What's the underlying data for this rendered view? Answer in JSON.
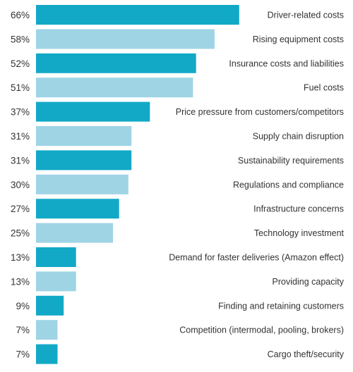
{
  "chart_data": {
    "type": "bar",
    "orientation": "horizontal",
    "categories": [
      "Driver-related costs",
      "Rising equipment costs",
      "Insurance costs and liabilities",
      "Fuel costs",
      "Price pressure from customers/competitors",
      "Supply chain disruption",
      "Sustainability requirements",
      "Regulations and compliance",
      "Infrastructure concerns",
      "Technology investment",
      "Demand for faster deliveries (Amazon effect)",
      "Providing capacity",
      "Finding and retaining customers",
      "Competition (intermodal, pooling, brokers)",
      "Cargo theft/security"
    ],
    "values": [
      66,
      58,
      52,
      51,
      37,
      31,
      31,
      30,
      27,
      25,
      13,
      13,
      9,
      7,
      7
    ],
    "value_labels": [
      "66%",
      "58%",
      "52%",
      "51%",
      "37%",
      "31%",
      "31%",
      "30%",
      "27%",
      "25%",
      "13%",
      "13%",
      "9%",
      "7%",
      "7%"
    ],
    "xlim": [
      0,
      100
    ],
    "grid": false,
    "legend": "none",
    "title": "",
    "xlabel": "",
    "ylabel": ""
  },
  "colors": {
    "dark_bar": "#12a9c7",
    "light_bar": "#9fd4e5",
    "text": "#333333"
  }
}
